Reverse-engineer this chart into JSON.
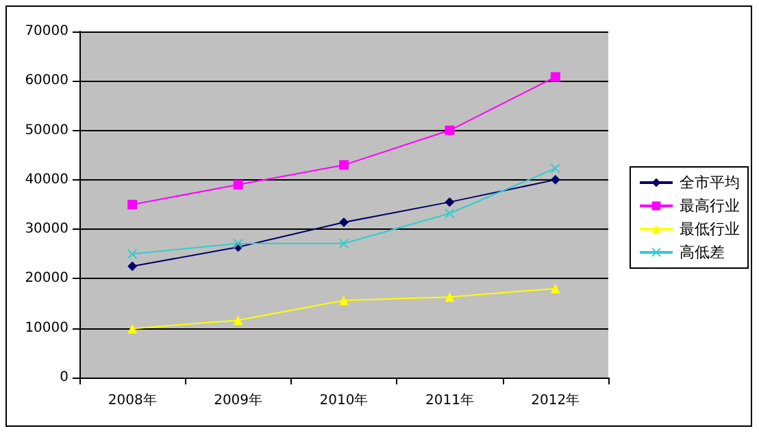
{
  "chart_data": {
    "type": "line",
    "categories": [
      "2008年",
      "2009年",
      "2010年",
      "2011年",
      "2012年"
    ],
    "series": [
      {
        "name": "全市平均",
        "color": "#000066",
        "marker": "diamond",
        "values": [
          22500,
          26400,
          31400,
          35500,
          40000
        ]
      },
      {
        "name": "最高行业",
        "color": "#ff00ff",
        "marker": "square",
        "values": [
          35000,
          39000,
          43000,
          50000,
          60800
        ]
      },
      {
        "name": "最低行业",
        "color": "#ffff00",
        "marker": "triangle",
        "values": [
          9900,
          11600,
          15600,
          16300,
          18000
        ]
      },
      {
        "name": "高低差",
        "color": "#33cccc",
        "marker": "cross",
        "values": [
          25000,
          27100,
          27100,
          33200,
          42300
        ]
      }
    ],
    "ylim": [
      0,
      70000
    ],
    "yticks": [
      0,
      10000,
      20000,
      30000,
      40000,
      50000,
      60000,
      70000
    ],
    "grid": "y",
    "legend": "right"
  }
}
